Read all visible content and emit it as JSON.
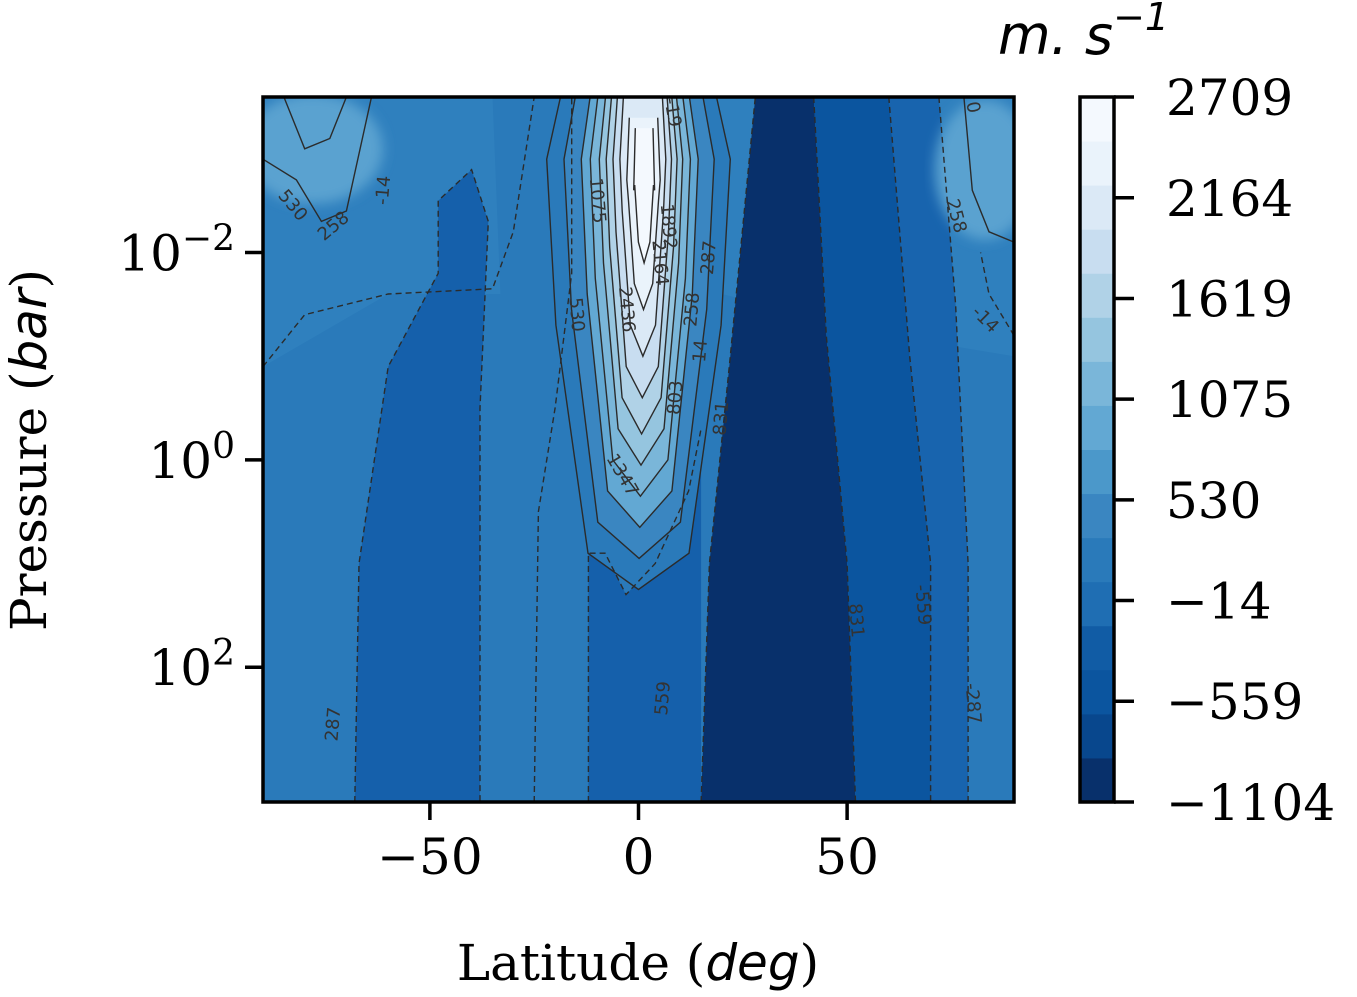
{
  "chart_data": {
    "type": "heatmap",
    "title": "",
    "xlabel": "Latitude (deg)",
    "ylabel": "Pressure (bar)",
    "xlim": [
      -90,
      90
    ],
    "ylim_log10": [
      -3.5,
      3.3
    ],
    "yscale": "log",
    "grid": false,
    "x_ticks": [
      {
        "value": -50,
        "label": "−50"
      },
      {
        "value": 0,
        "label": "0"
      },
      {
        "value": 50,
        "label": "50"
      }
    ],
    "y_ticks": [
      {
        "exp": -2,
        "base": "10",
        "sup": "−2"
      },
      {
        "exp": 0,
        "base": "10",
        "sup": "0"
      },
      {
        "exp": 2,
        "base": "10",
        "sup": "2"
      }
    ],
    "colorbar": {
      "unit": "m. s",
      "unit_sup": "−1",
      "min": -1104,
      "max": 2709,
      "ticks": [
        {
          "value": 2709,
          "label": "2709"
        },
        {
          "value": 2164,
          "label": "2164"
        },
        {
          "value": 1619,
          "label": "1619"
        },
        {
          "value": 1075,
          "label": "1075"
        },
        {
          "value": 530,
          "label": "530"
        },
        {
          "value": -14,
          "label": "−14"
        },
        {
          "value": -559,
          "label": "−559"
        },
        {
          "value": -1104,
          "label": "−1104"
        }
      ],
      "levels": 14,
      "colors": [
        "#08306b",
        "#08478d",
        "#0b559f",
        "#115ca5",
        "#1f6eb3",
        "#2a7aba",
        "#3a86c1",
        "#4b98ca",
        "#62a8d3",
        "#7ab6d9",
        "#95c5df",
        "#b0d2e7",
        "#c8ddf0",
        "#dbe9f6",
        "#eaf3fb",
        "#f4f9fe"
      ]
    },
    "contour_labels": [
      {
        "text": "530",
        "lat": -83,
        "logp": -2.45,
        "rot": 50
      },
      {
        "text": "258",
        "lat": -73,
        "logp": -2.25,
        "rot": -40
      },
      {
        "text": "-14",
        "lat": -61,
        "logp": -2.6,
        "rot": -85
      },
      {
        "text": "1075",
        "lat": -10,
        "logp": -2.5,
        "rot": 85
      },
      {
        "text": "1892",
        "lat": 7,
        "logp": -2.25,
        "rot": 85
      },
      {
        "text": "2164",
        "lat": 5,
        "logp": -1.9,
        "rot": 85
      },
      {
        "text": "2436",
        "lat": -3,
        "logp": -1.45,
        "rot": 85
      },
      {
        "text": "287",
        "lat": 17,
        "logp": -1.95,
        "rot": -85
      },
      {
        "text": "258",
        "lat": 13,
        "logp": -1.45,
        "rot": -85
      },
      {
        "text": "14",
        "lat": 15,
        "logp": -1.05,
        "rot": -85
      },
      {
        "text": "530",
        "lat": -15,
        "logp": -1.4,
        "rot": 85
      },
      {
        "text": "803",
        "lat": 9,
        "logp": -0.6,
        "rot": -85
      },
      {
        "text": "831",
        "lat": 20,
        "logp": -0.4,
        "rot": -85
      },
      {
        "text": "1347",
        "lat": -4,
        "logp": 0.15,
        "rot": 60
      },
      {
        "text": "-19",
        "lat": 8,
        "logp": -3.35,
        "rot": 80
      },
      {
        "text": "0",
        "lat": 80,
        "logp": -3.4,
        "rot": 80
      },
      {
        "text": "258",
        "lat": 76,
        "logp": -2.35,
        "rot": 75
      },
      {
        "text": "-14",
        "lat": 83,
        "logp": -1.35,
        "rot": 45
      },
      {
        "text": "831",
        "lat": 52,
        "logp": 1.55,
        "rot": 85
      },
      {
        "text": "-559",
        "lat": 68,
        "logp": 1.4,
        "rot": 85
      },
      {
        "text": "559",
        "lat": 6,
        "logp": 2.3,
        "rot": -85
      },
      {
        "text": "287",
        "lat": -73,
        "logp": 2.55,
        "rot": -85
      },
      {
        "text": "-287",
        "lat": 80,
        "logp": 2.35,
        "rot": 85
      }
    ]
  }
}
